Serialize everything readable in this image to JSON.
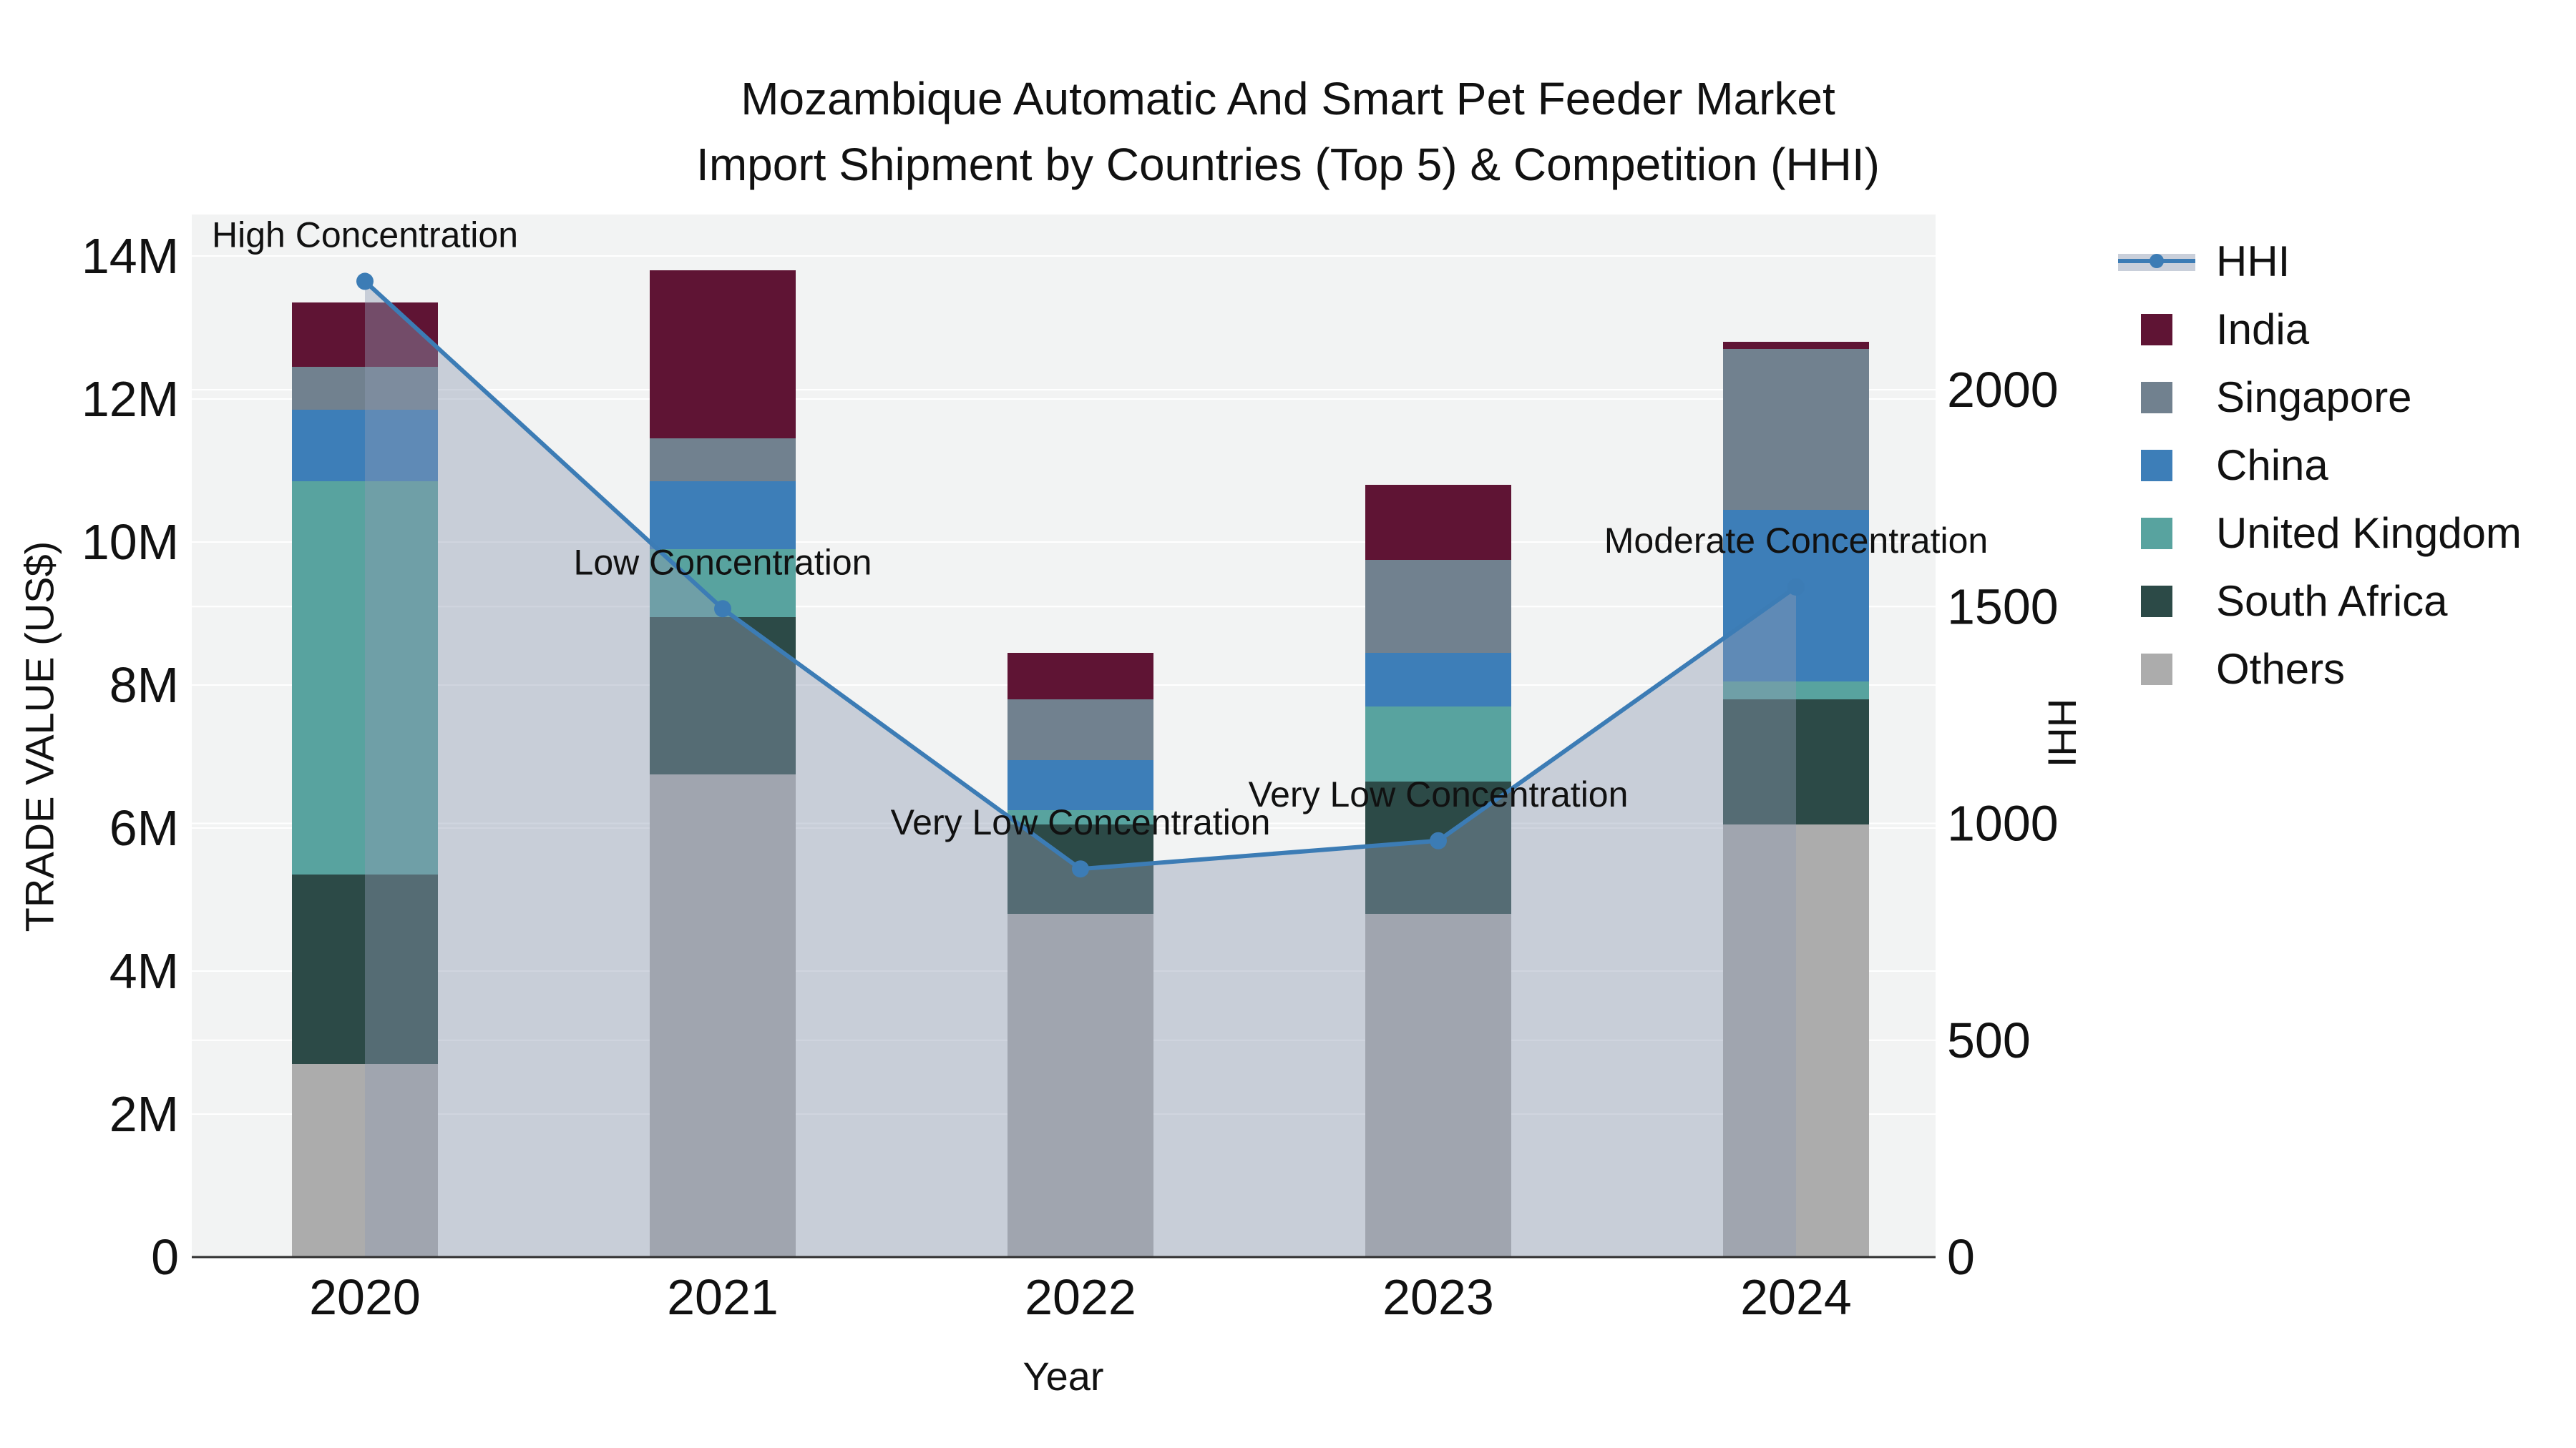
{
  "title": {
    "line1": "Mozambique Automatic And Smart Pet Feeder Market",
    "line2": "Import Shipment by Countries (Top 5) & Competition (HHI)"
  },
  "axes": {
    "left_title": "TRADE VALUE (US$)",
    "right_title": "HHI",
    "x_title": "Year",
    "left_tick_labels": [
      "0",
      "2M",
      "4M",
      "6M",
      "8M",
      "10M",
      "12M",
      "14M"
    ],
    "right_tick_labels": [
      "0",
      "500",
      "1000",
      "1500",
      "2000"
    ]
  },
  "legend_items": [
    {
      "label": "HHI",
      "type": "line",
      "color": "#3c7cb5",
      "band_color": "#c9cfda"
    },
    {
      "label": "India",
      "type": "swatch",
      "color": "#5f1434"
    },
    {
      "label": "Singapore",
      "type": "swatch",
      "color": "#71818f"
    },
    {
      "label": "China",
      "type": "swatch",
      "color": "#3d7eb8"
    },
    {
      "label": "United Kingdom",
      "type": "swatch",
      "color": "#58a39f"
    },
    {
      "label": "South Africa",
      "type": "swatch",
      "color": "#2c4a47"
    },
    {
      "label": "Others",
      "type": "swatch",
      "color": "#acacac"
    }
  ],
  "chart_data": {
    "type": "bar",
    "subtype": "stacked-bars-with-hhi-line-and-area",
    "title": "Mozambique Automatic And Smart Pet Feeder Market Import Shipment by Countries (Top 5) & Competition (HHI)",
    "xlabel": "Year",
    "ylabel_left": "TRADE VALUE (US$)",
    "ylabel_right": "HHI",
    "categories": [
      "2020",
      "2021",
      "2022",
      "2023",
      "2024"
    ],
    "value_unit": "USD millions",
    "series": [
      {
        "name": "Others",
        "color": "#acacac",
        "values": [
          2.7,
          6.75,
          4.8,
          4.8,
          6.05
        ]
      },
      {
        "name": "South Africa",
        "color": "#2c4a47",
        "values": [
          2.65,
          2.2,
          1.25,
          1.85,
          1.75
        ]
      },
      {
        "name": "United Kingdom",
        "color": "#58a39f",
        "values": [
          5.5,
          0.95,
          0.2,
          1.05,
          0.25
        ]
      },
      {
        "name": "China",
        "color": "#3d7eb8",
        "values": [
          1.0,
          0.95,
          0.7,
          0.75,
          2.4
        ]
      },
      {
        "name": "Singapore",
        "color": "#71818f",
        "values": [
          0.6,
          0.6,
          0.85,
          1.3,
          2.25
        ]
      },
      {
        "name": "India",
        "color": "#5f1434",
        "values": [
          0.9,
          2.35,
          0.65,
          1.05,
          0.1
        ]
      }
    ],
    "bar_totals_musd": [
      13.35,
      13.8,
      8.45,
      10.8,
      12.8
    ],
    "line_series": {
      "name": "HHI",
      "color": "#3c7cb5",
      "area_color": "rgba(143,154,178,0.42)",
      "values": [
        2250,
        1495,
        895,
        960,
        1545
      ]
    },
    "annotations": [
      {
        "year": "2020",
        "label": "High Concentration"
      },
      {
        "year": "2021",
        "label": "Low Concentration"
      },
      {
        "year": "2022",
        "label": "Very Low Concentration"
      },
      {
        "year": "2023",
        "label": "Very Low Concentration"
      },
      {
        "year": "2024",
        "label": "Moderate Concentration"
      }
    ],
    "ylim_left_musd": [
      0,
      14.58
    ],
    "ylim_right_hhi": [
      0,
      2404
    ],
    "left_ticks_musd": [
      0,
      2,
      4,
      6,
      8,
      10,
      12,
      14
    ],
    "right_ticks_hhi": [
      0,
      500,
      1000,
      1500,
      2000
    ],
    "grid": true,
    "grid_color": "#ffffff",
    "plot_bg": "#f2f3f3",
    "legend_position": "top-right"
  }
}
